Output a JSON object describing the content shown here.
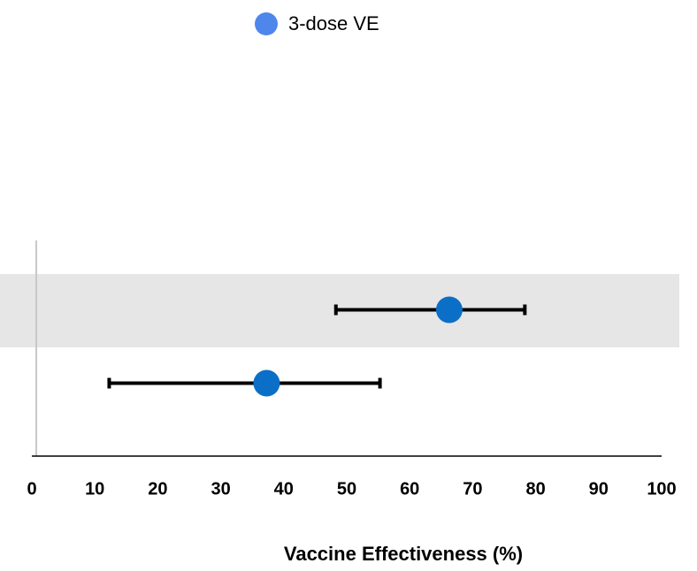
{
  "chart_data": {
    "type": "forest",
    "x_label": "Vaccine Effectiveness (%)",
    "categories": [
      null,
      null
    ],
    "series": [
      {
        "name": "3-dose VE",
        "color": "#0b6fc7",
        "legend_marker_color": "#4f86ec",
        "values": [
          66,
          37
        ],
        "lower": [
          48,
          12
        ],
        "upper": [
          78,
          55
        ]
      }
    ],
    "xlim": [
      0,
      100
    ],
    "xticks": [
      0,
      10,
      20,
      30,
      40,
      50,
      60,
      70,
      80,
      90,
      100
    ]
  }
}
